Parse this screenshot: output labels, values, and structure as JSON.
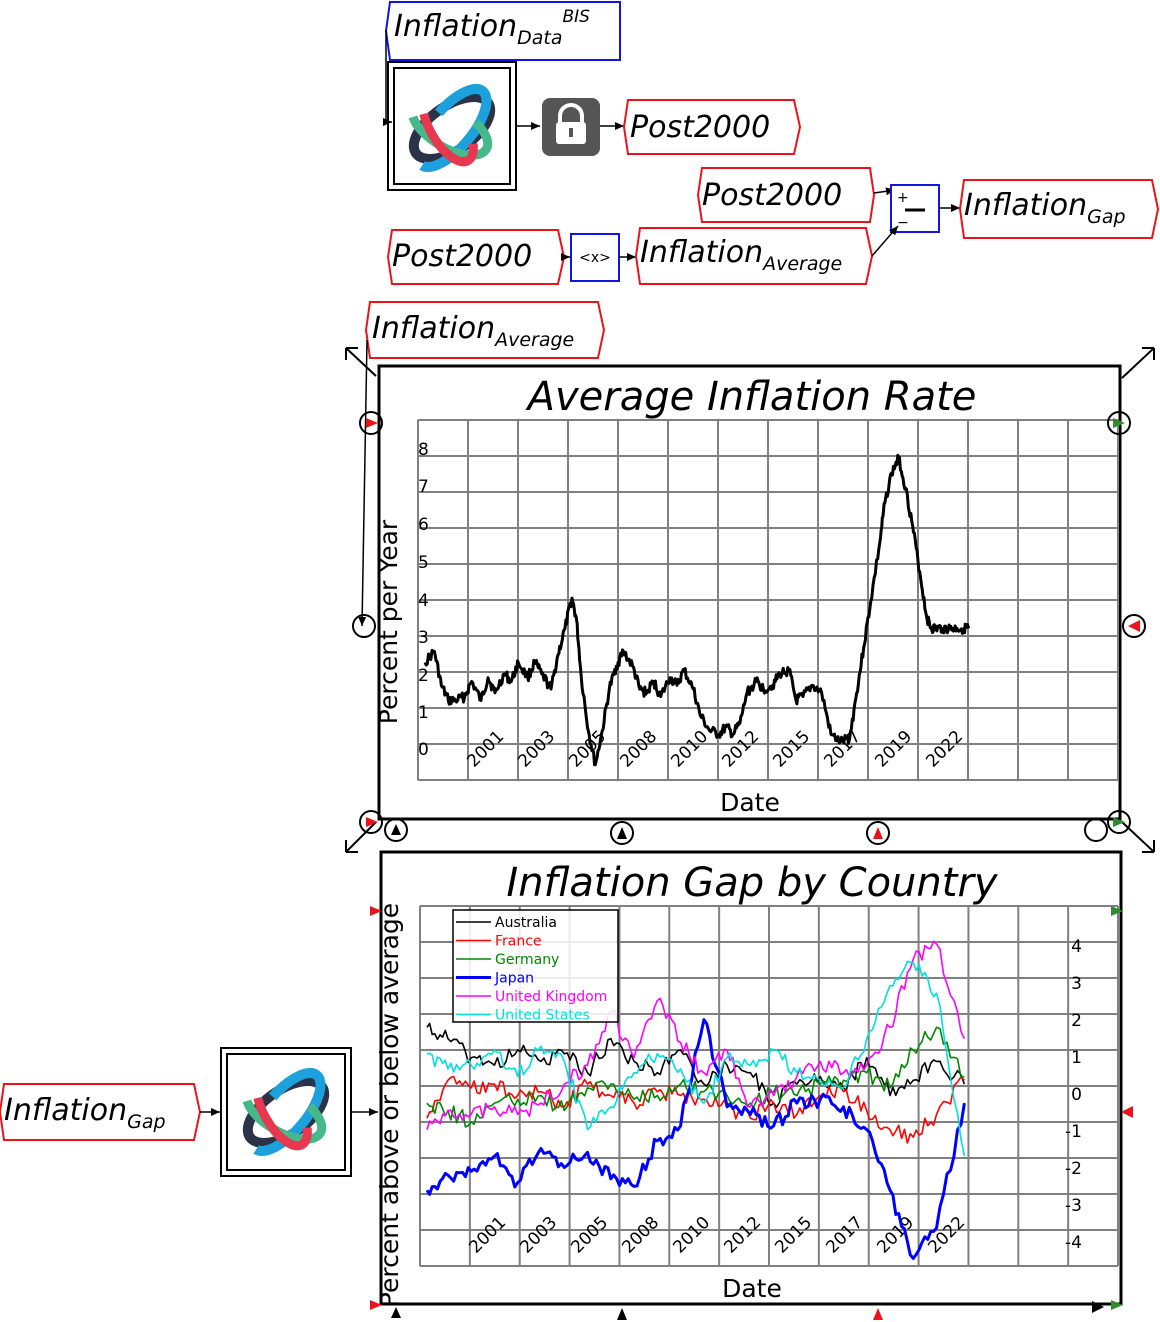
{
  "blocks": {
    "inflation_data": {
      "base": "Inflation",
      "sub": "Data",
      "sup": "BIS"
    },
    "post2000_out": {
      "base": "Post2000"
    },
    "post2000_sub_in": {
      "base": "Post2000"
    },
    "post2000_avg_in": {
      "base": "Post2000"
    },
    "inflation_average_out": {
      "base": "Inflation",
      "sub": "Average"
    },
    "inflation_gap_out": {
      "base": "Inflation",
      "sub": "Gap"
    },
    "inflation_average_plot_in": {
      "base": "Inflation",
      "sub": "Average"
    },
    "inflation_gap_plot_in": {
      "base": "Inflation",
      "sub": "Gap"
    },
    "average_op_label": "<x>",
    "subtract_op_plus": "+",
    "subtract_op_minus": "−"
  },
  "colors": {
    "variable_border": "#e8141b",
    "parameter_border": "#1414e0",
    "lock_bg": "#555555"
  },
  "icons": [
    "lock-icon",
    "model-logo-icon"
  ],
  "chart_data": [
    {
      "type": "line",
      "title": "Average Inflation Rate",
      "xlabel": "Date",
      "ylabel": "Percent per Year",
      "x_tick_labels": [
        "2001",
        "2003",
        "2005",
        "2008",
        "2010",
        "2012",
        "2015",
        "2017",
        "2019",
        "2022"
      ],
      "y_tick_labels": [
        "0",
        "1",
        "2",
        "3",
        "4",
        "5",
        "6",
        "7",
        "8"
      ],
      "ylim": [
        -0.5,
        9
      ],
      "xlim": [
        2000,
        2030
      ],
      "grid": true,
      "series": [
        {
          "color": "#000000",
          "x": [
            2000.3,
            2000.7,
            2001.0,
            2001.3,
            2001.6,
            2002.0,
            2002.3,
            2002.7,
            2003.0,
            2003.3,
            2003.7,
            2004.0,
            2004.3,
            2004.7,
            2005.0,
            2005.3,
            2005.7,
            2006.0,
            2006.3,
            2006.6,
            2006.8,
            2007.0,
            2007.3,
            2007.6,
            2007.9,
            2008.2,
            2008.5,
            2008.8,
            2009.2,
            2009.5,
            2009.8,
            2010.1,
            2010.4,
            2010.8,
            2011.1,
            2011.4,
            2011.8,
            2012.1,
            2012.5,
            2012.9,
            2013.2,
            2013.5,
            2013.8,
            2014.1,
            2014.5,
            2014.8,
            2015.2,
            2015.5,
            2015.9,
            2016.2,
            2016.5,
            2016.9,
            2017.3,
            2017.7,
            2018.1,
            2018.5,
            2018.8,
            2019.1,
            2019.4,
            2019.8,
            2020.0,
            2020.3,
            2020.6,
            2020.9,
            2021.2,
            2021.5,
            2021.8,
            2022.0,
            2022.2,
            2022.5,
            2022.8,
            2023.1,
            2023.4,
            2023.6
          ],
          "y": [
            2.6,
            2.9,
            2.0,
            1.6,
            1.6,
            1.7,
            2.1,
            1.6,
            2.2,
            1.8,
            2.3,
            2.1,
            2.6,
            2.2,
            2.6,
            2.3,
            1.9,
            2.8,
            3.5,
            4.3,
            3.7,
            2.2,
            0.8,
            -0.1,
            0.8,
            1.9,
            2.5,
            2.9,
            2.5,
            1.9,
            1.8,
            2.1,
            1.7,
            2.2,
            2.0,
            2.4,
            1.9,
            1.2,
            0.8,
            0.7,
            0.9,
            0.7,
            1.0,
            1.8,
            2.1,
            1.9,
            2.0,
            2.3,
            2.4,
            1.6,
            1.7,
            2.0,
            1.8,
            0.7,
            0.5,
            0.6,
            1.8,
            3.0,
            4.2,
            5.8,
            6.8,
            7.6,
            8.0,
            7.2,
            6.2,
            5.0,
            3.8,
            3.5,
            3.5,
            3.5,
            3.5,
            3.5,
            3.5,
            3.5
          ]
        }
      ]
    },
    {
      "type": "line",
      "title": "Inflation Gap by Country",
      "xlabel": "Date",
      "ylabel": "Percent above or below average",
      "x_tick_labels": [
        "2001",
        "2003",
        "2005",
        "2008",
        "2010",
        "2012",
        "2015",
        "2017",
        "2019",
        "2022"
      ],
      "y_tick_labels": [
        "-4",
        "-3",
        "-2",
        "-1",
        "0",
        "1",
        "2",
        "3",
        "4"
      ],
      "ylim": [
        -4.5,
        5
      ],
      "xlim": [
        2000,
        2030
      ],
      "grid": true,
      "legend": "top-left",
      "series": [
        {
          "name": "Australia",
          "color": "#000000",
          "x": [
            2000.3,
            2001.2,
            2002.2,
            2003.2,
            2004.2,
            2005.2,
            2006.2,
            2007.2,
            2008.2,
            2009.2,
            2010.2,
            2011.2,
            2012.2,
            2013.2,
            2014.2,
            2015.2,
            2016.2,
            2017.2,
            2018.2,
            2019.2,
            2020.2,
            2021.2,
            2022.2,
            2023.4
          ],
          "y": [
            1.8,
            1.5,
            1.0,
            0.8,
            1.2,
            0.9,
            1.1,
            0.6,
            1.5,
            0.9,
            0.6,
            1.2,
            0.3,
            0.8,
            0.6,
            -0.2,
            0.3,
            0.5,
            0.2,
            1.0,
            0.0,
            0.4,
            0.9,
            0.3
          ]
        },
        {
          "name": "France",
          "color": "#ff0000",
          "x": [
            2000.3,
            2001.2,
            2002.2,
            2003.2,
            2004.2,
            2005.2,
            2006.2,
            2007.2,
            2008.2,
            2009.2,
            2010.2,
            2011.2,
            2012.2,
            2013.2,
            2014.2,
            2015.2,
            2016.2,
            2017.2,
            2018.2,
            2019.2,
            2020.2,
            2021.2,
            2022.2,
            2023.4
          ],
          "y": [
            -0.6,
            0.4,
            0.2,
            0.3,
            0.0,
            0.1,
            -0.3,
            0.3,
            0.0,
            -0.2,
            0.1,
            0.0,
            -0.1,
            -0.3,
            -0.6,
            -0.2,
            -0.5,
            0.0,
            0.1,
            -0.4,
            -0.9,
            -1.1,
            -0.5,
            0.4
          ]
        },
        {
          "name": "Germany",
          "color": "#008800",
          "x": [
            2000.3,
            2001.2,
            2002.2,
            2003.2,
            2004.2,
            2005.2,
            2006.2,
            2007.2,
            2008.2,
            2009.2,
            2010.2,
            2011.2,
            2012.2,
            2013.2,
            2014.2,
            2015.2,
            2016.2,
            2017.2,
            2018.2,
            2019.2,
            2020.2,
            2021.2,
            2022.2,
            2023.4
          ],
          "y": [
            -0.2,
            -0.4,
            -0.7,
            -0.2,
            -0.1,
            0.0,
            -0.4,
            0.2,
            0.3,
            -0.1,
            0.0,
            0.3,
            0.1,
            0.0,
            -0.2,
            0.1,
            0.0,
            0.3,
            0.4,
            0.6,
            0.2,
            1.2,
            1.8,
            0.5
          ]
        },
        {
          "name": "Japan",
          "color": "#0000ff",
          "x": [
            2000.3,
            2001.2,
            2002.2,
            2003.2,
            2004.2,
            2005.2,
            2006.2,
            2007.2,
            2008.2,
            2009.2,
            2010.2,
            2011.2,
            2012.2,
            2013.2,
            2014.2,
            2015.2,
            2016.2,
            2017.2,
            2018.2,
            2019.2,
            2020.2,
            2021.2,
            2022.2,
            2023.4
          ],
          "y": [
            -2.5,
            -2.1,
            -2.0,
            -1.6,
            -2.3,
            -1.4,
            -1.9,
            -1.5,
            -2.2,
            -2.4,
            -1.2,
            -0.8,
            2.0,
            -0.3,
            -0.5,
            -0.8,
            -0.2,
            -0.1,
            -0.3,
            -0.9,
            -2.5,
            -4.3,
            -3.5,
            -0.2
          ]
        },
        {
          "name": "United Kingdom",
          "color": "#ff00ff",
          "x": [
            2000.3,
            2001.2,
            2002.2,
            2003.2,
            2004.2,
            2005.2,
            2006.2,
            2007.2,
            2008.2,
            2009.2,
            2010.2,
            2011.2,
            2012.2,
            2013.2,
            2014.2,
            2015.2,
            2016.2,
            2017.2,
            2018.2,
            2019.2,
            2020.2,
            2021.2,
            2022.2,
            2023.4
          ],
          "y": [
            -0.9,
            -0.4,
            -0.5,
            -0.3,
            -0.5,
            -0.2,
            0.3,
            0.8,
            2.2,
            1.0,
            2.5,
            1.4,
            0.6,
            1.2,
            -0.3,
            0.0,
            0.5,
            0.9,
            0.6,
            0.8,
            1.8,
            3.6,
            4.0,
            1.5
          ]
        },
        {
          "name": "United States",
          "color": "#00e0e0",
          "x": [
            2000.3,
            2001.2,
            2002.2,
            2003.2,
            2004.2,
            2005.2,
            2006.2,
            2007.2,
            2008.2,
            2009.2,
            2010.2,
            2011.2,
            2012.2,
            2013.2,
            2014.2,
            2015.2,
            2016.2,
            2017.2,
            2018.2,
            2019.2,
            2020.2,
            2021.2,
            2022.2,
            2023.4
          ],
          "y": [
            1.1,
            0.7,
            0.8,
            1.2,
            0.5,
            1.3,
            0.9,
            -0.9,
            -0.3,
            0.6,
            1.1,
            0.7,
            -0.2,
            1.0,
            0.8,
            1.2,
            0.6,
            0.4,
            0.2,
            1.5,
            2.9,
            3.5,
            2.7,
            -1.6
          ]
        }
      ]
    }
  ]
}
